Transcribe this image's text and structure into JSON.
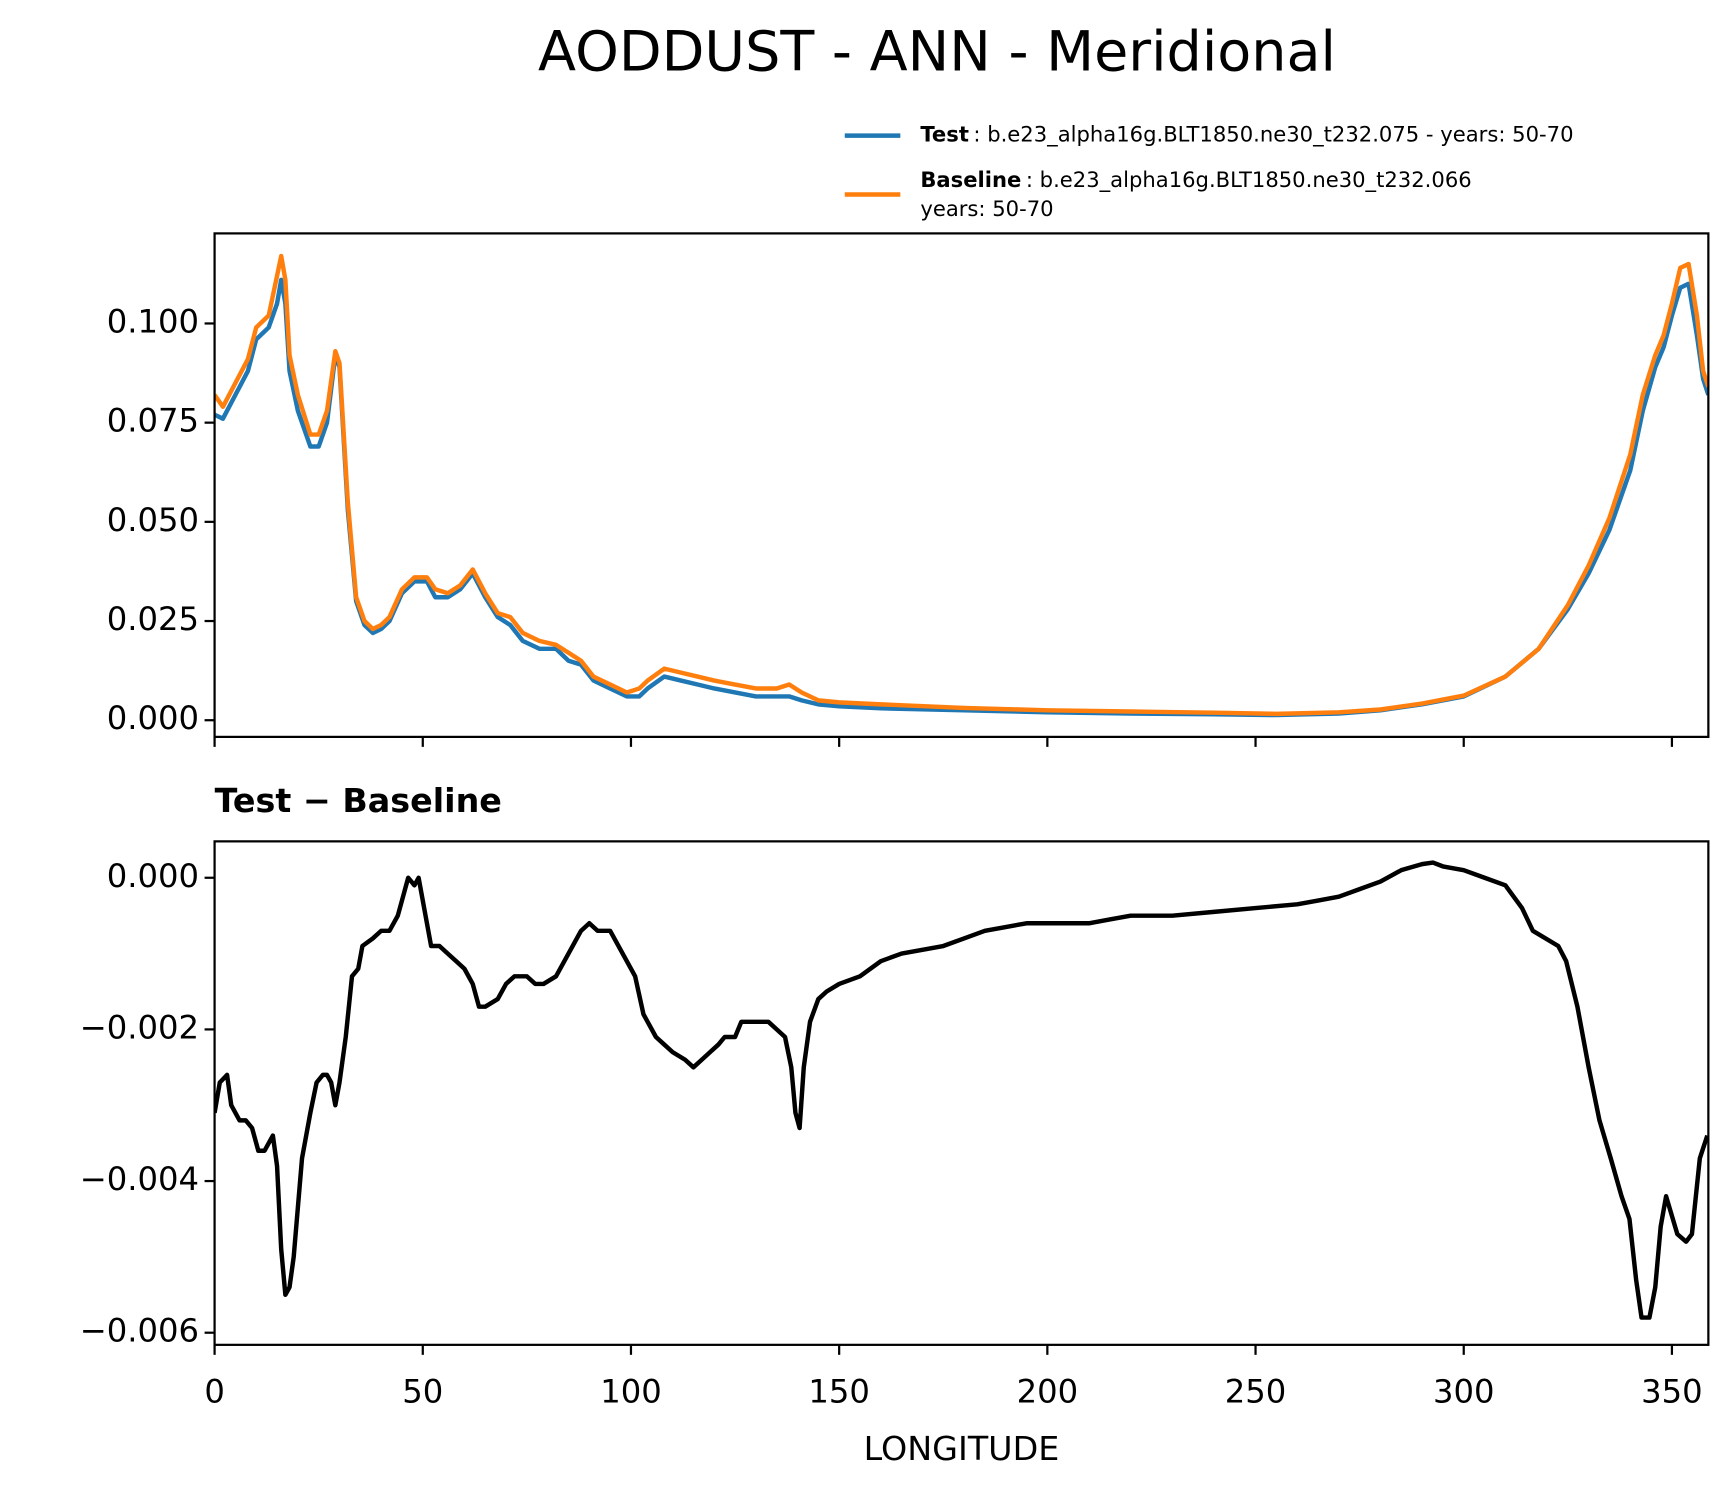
{
  "chart_data": [
    {
      "type": "line",
      "title": "AODDUST - ANN - Meridional",
      "x": [
        0,
        2,
        5,
        8,
        10,
        13,
        15,
        16,
        17,
        18,
        20,
        23,
        25,
        27,
        29,
        30,
        32,
        34,
        36,
        38,
        40,
        42,
        45,
        48,
        51,
        53,
        56,
        59,
        62,
        65,
        68,
        71,
        74,
        78,
        82,
        85,
        88,
        91,
        95,
        99,
        102,
        104,
        108,
        112,
        116,
        120,
        125,
        130,
        135,
        138,
        141,
        145,
        150,
        160,
        180,
        200,
        220,
        240,
        255,
        270,
        280,
        290,
        300,
        310,
        318,
        325,
        330,
        335,
        340,
        343,
        346,
        348,
        350,
        352,
        354,
        356,
        357.5,
        358.75
      ],
      "series": [
        {
          "name": "Test",
          "details": [
            ": b.e23_alpha16g.BLT1850.ne30_t232.075 - years: 50-70"
          ],
          "color": "#1f77b4",
          "values": [
            0.077,
            0.076,
            0.082,
            0.088,
            0.096,
            0.099,
            0.105,
            0.111,
            0.105,
            0.088,
            0.078,
            0.069,
            0.069,
            0.075,
            0.092,
            0.089,
            0.053,
            0.03,
            0.024,
            0.022,
            0.023,
            0.025,
            0.032,
            0.035,
            0.035,
            0.031,
            0.031,
            0.033,
            0.037,
            0.031,
            0.026,
            0.024,
            0.02,
            0.018,
            0.018,
            0.015,
            0.014,
            0.01,
            0.008,
            0.006,
            0.006,
            0.008,
            0.011,
            0.01,
            0.009,
            0.008,
            0.007,
            0.006,
            0.006,
            0.006,
            0.005,
            0.004,
            0.0035,
            0.003,
            0.0025,
            0.002,
            0.0017,
            0.0015,
            0.0013,
            0.0017,
            0.0025,
            0.004,
            0.006,
            0.011,
            0.018,
            0.028,
            0.037,
            0.048,
            0.063,
            0.078,
            0.089,
            0.094,
            0.102,
            0.109,
            0.11,
            0.097,
            0.086,
            0.082
          ]
        },
        {
          "name": "Baseline",
          "details": [
            ": b.e23_alpha16g.BLT1850.ne30_t232.066",
            "years: 50-70"
          ],
          "color": "#ff7f0e",
          "values": [
            0.082,
            0.079,
            0.085,
            0.091,
            0.099,
            0.102,
            0.112,
            0.117,
            0.111,
            0.092,
            0.082,
            0.072,
            0.072,
            0.078,
            0.093,
            0.09,
            0.055,
            0.031,
            0.025,
            0.023,
            0.024,
            0.026,
            0.033,
            0.036,
            0.036,
            0.033,
            0.032,
            0.034,
            0.038,
            0.032,
            0.027,
            0.026,
            0.022,
            0.02,
            0.019,
            0.017,
            0.015,
            0.011,
            0.009,
            0.007,
            0.008,
            0.01,
            0.013,
            0.012,
            0.011,
            0.01,
            0.009,
            0.008,
            0.008,
            0.009,
            0.007,
            0.005,
            0.0045,
            0.004,
            0.0031,
            0.0025,
            0.0022,
            0.0019,
            0.0016,
            0.002,
            0.0027,
            0.0042,
            0.0062,
            0.011,
            0.018,
            0.029,
            0.039,
            0.051,
            0.067,
            0.082,
            0.092,
            0.097,
            0.105,
            0.114,
            0.115,
            0.102,
            0.088,
            0.084
          ]
        }
      ],
      "xlim": [
        0,
        358.75
      ],
      "xticks": [
        0,
        50,
        100,
        150,
        200,
        250,
        300,
        350
      ],
      "xtick_labels": false,
      "ylim": [
        -0.0042,
        0.1227
      ],
      "yticks": [
        {
          "value": 0,
          "label": "0.000"
        },
        {
          "value": 0.025,
          "label": "0.025"
        },
        {
          "value": 0.05,
          "label": "0.050"
        },
        {
          "value": 0.075,
          "label": "0.075"
        },
        {
          "value": 0.1,
          "label": "0.100"
        }
      ]
    },
    {
      "type": "line",
      "title": "Test − Baseline",
      "xlabel": "LONGITUDE",
      "color": "#000000",
      "x": [
        0,
        1.25,
        3,
        4,
        6,
        7.5,
        9,
        10.5,
        12,
        14,
        15,
        16,
        17,
        18,
        19,
        21,
        23,
        24.5,
        26,
        27,
        28,
        29,
        30,
        31.5,
        33,
        34.5,
        35.5,
        38,
        40,
        42,
        44,
        45.5,
        46.5,
        48,
        49,
        51,
        52,
        54,
        56,
        58,
        60,
        62,
        63.5,
        65,
        68,
        70,
        72,
        75,
        77,
        79,
        82,
        85,
        88,
        90,
        92,
        95,
        98,
        101,
        103,
        106,
        108,
        110,
        113,
        115,
        117,
        119,
        121,
        122.5,
        124,
        125,
        126.5,
        130,
        133,
        135,
        137,
        138.5,
        139.5,
        140.5,
        141.5,
        143,
        145,
        147,
        150,
        155,
        160,
        165,
        170,
        175,
        180,
        185,
        190,
        195,
        200,
        205,
        210,
        215,
        220,
        230,
        240,
        250,
        260,
        265,
        270,
        275,
        280,
        285,
        290,
        292.6,
        295,
        300,
        305,
        310,
        314,
        316.6,
        322.7,
        324.6,
        327.3,
        330,
        332.6,
        335.3,
        337.9,
        339.8,
        341.4,
        342.7,
        344.6,
        346,
        347.3,
        348.6,
        351.3,
        353.4,
        354.8,
        356.7,
        358.5
      ],
      "values": [
        -0.0031,
        -0.0027,
        -0.0026,
        -0.003,
        -0.0032,
        -0.0032,
        -0.0033,
        -0.0036,
        -0.0036,
        -0.0034,
        -0.0038,
        -0.0049,
        -0.0055,
        -0.0054,
        -0.005,
        -0.0037,
        -0.0031,
        -0.0027,
        -0.0026,
        -0.0026,
        -0.0027,
        -0.003,
        -0.0027,
        -0.0021,
        -0.0013,
        -0.0012,
        -0.0009,
        -0.0008,
        -0.0007,
        -0.0007,
        -0.0005,
        -0.0002,
        0.0,
        -0.0001,
        0.0,
        -0.0006,
        -0.0009,
        -0.0009,
        -0.001,
        -0.0011,
        -0.0012,
        -0.0014,
        -0.0017,
        -0.0017,
        -0.0016,
        -0.0014,
        -0.0013,
        -0.0013,
        -0.0014,
        -0.0014,
        -0.0013,
        -0.001,
        -0.0007,
        -0.0006,
        -0.0007,
        -0.0007,
        -0.001,
        -0.0013,
        -0.0018,
        -0.0021,
        -0.0022,
        -0.0023,
        -0.0024,
        -0.0025,
        -0.0024,
        -0.0023,
        -0.0022,
        -0.0021,
        -0.0021,
        -0.0021,
        -0.0019,
        -0.0019,
        -0.0019,
        -0.002,
        -0.0021,
        -0.0025,
        -0.0031,
        -0.0033,
        -0.0025,
        -0.0019,
        -0.0016,
        -0.0015,
        -0.0014,
        -0.0013,
        -0.0011,
        -0.001,
        -0.00095,
        -0.0009,
        -0.0008,
        -0.0007,
        -0.00065,
        -0.0006,
        -0.0006,
        -0.0006,
        -0.0006,
        -0.00055,
        -0.0005,
        -0.0005,
        -0.00045,
        -0.0004,
        -0.00035,
        -0.0003,
        -0.00025,
        -0.00015,
        -5e-05,
        0.0001,
        0.00018,
        0.0002,
        0.00015,
        0.0001,
        0.0,
        -0.0001,
        -0.0004,
        -0.0007,
        -0.0009,
        -0.0011,
        -0.0017,
        -0.0025,
        -0.0032,
        -0.0037,
        -0.0042,
        -0.0045,
        -0.0053,
        -0.0058,
        -0.0058,
        -0.0054,
        -0.0046,
        -0.0042,
        -0.0047,
        -0.0048,
        -0.0047,
        -0.0037,
        -0.0034
      ],
      "xlim": [
        0,
        358.75
      ],
      "xticks": [
        0,
        50,
        100,
        150,
        200,
        250,
        300,
        350
      ],
      "xtick_labels": true,
      "ylim": [
        -0.00616,
        0.00048
      ],
      "yticks": [
        {
          "value": -0.006,
          "label": "−0.006"
        },
        {
          "value": -0.004,
          "label": "−0.004"
        },
        {
          "value": -0.002,
          "label": "−0.002"
        },
        {
          "value": 0,
          "label": "0.000"
        }
      ]
    }
  ]
}
